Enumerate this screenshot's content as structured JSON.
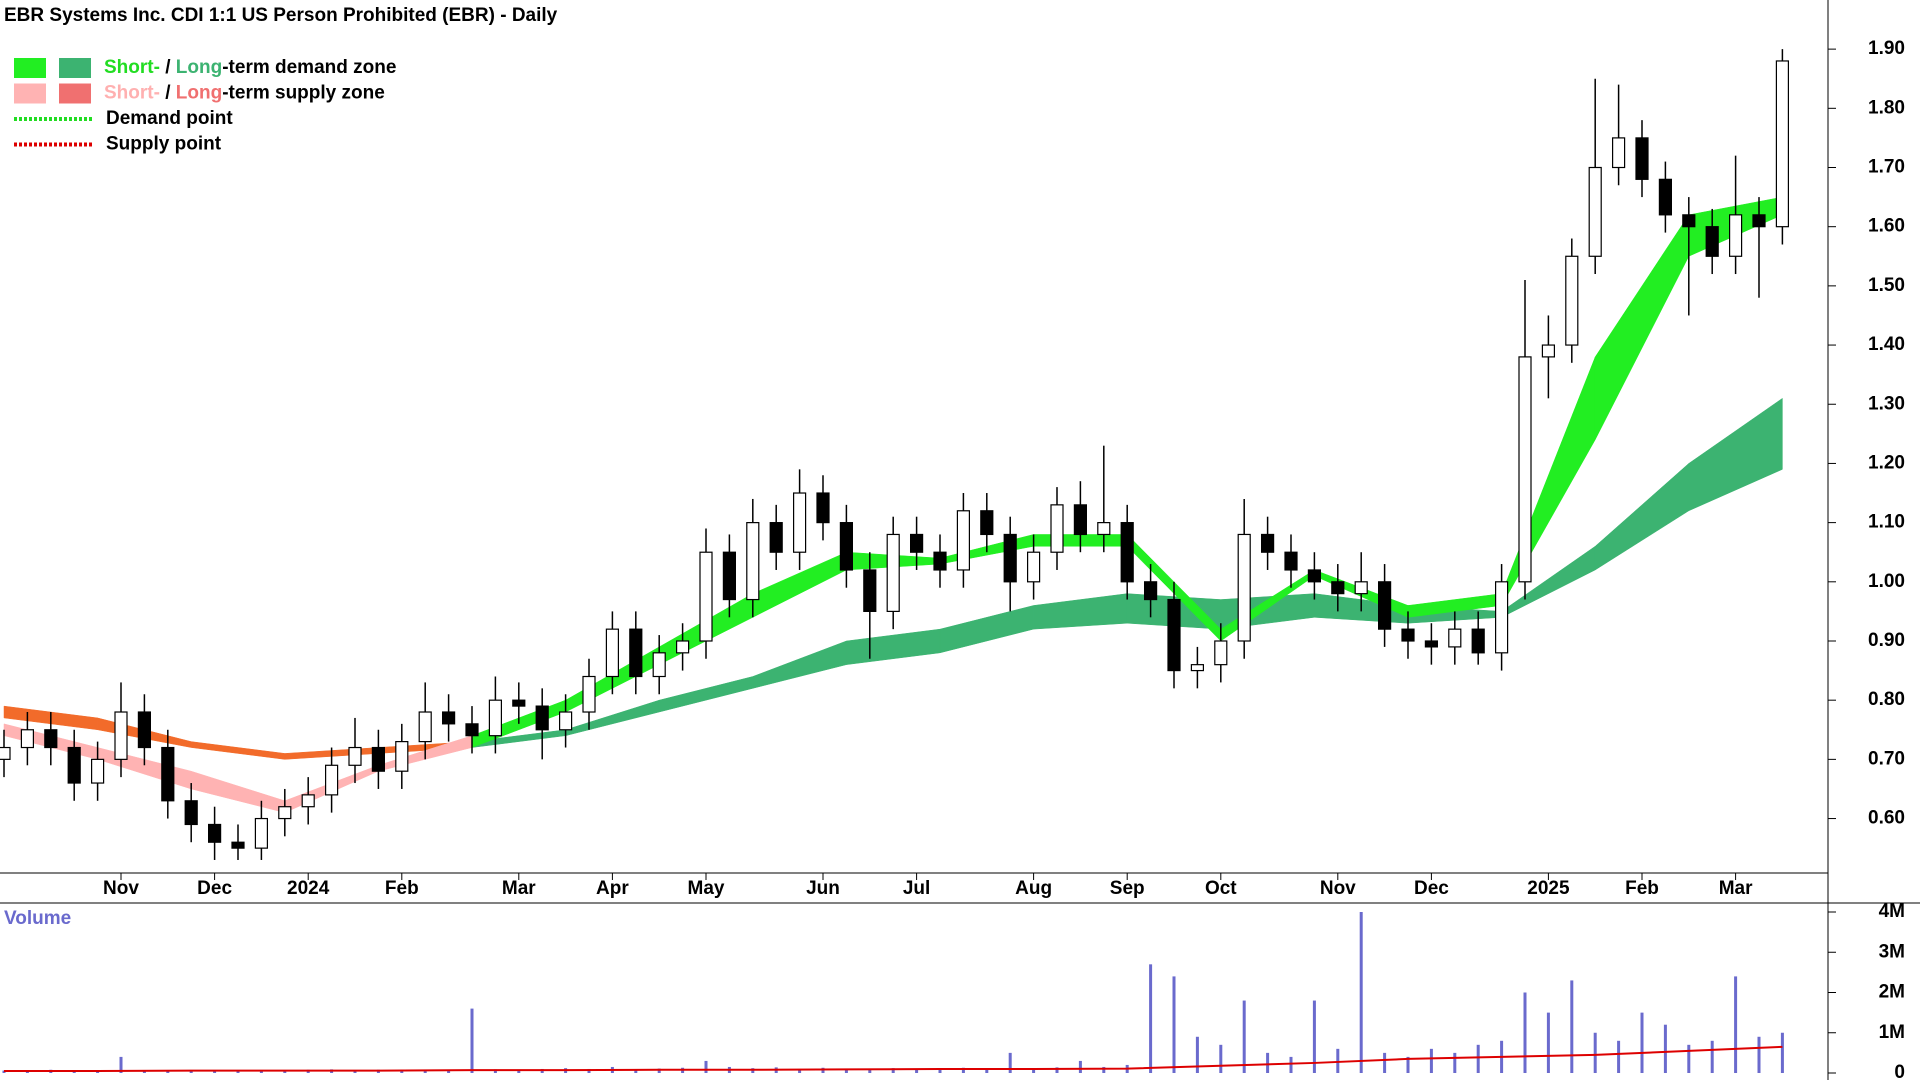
{
  "chart_data": [
    {
      "type": "candlestick",
      "title": "EBR Systems Inc. CDI 1:1 US Person Prohibited (EBR) - Daily",
      "categories": [
        null,
        null,
        null,
        null,
        null,
        "Nov",
        null,
        null,
        null,
        "Dec",
        null,
        null,
        null,
        "2024",
        null,
        null,
        null,
        "Feb",
        null,
        null,
        null,
        null,
        "Mar",
        null,
        null,
        null,
        "Apr",
        null,
        null,
        null,
        "May",
        null,
        null,
        null,
        null,
        "Jun",
        null,
        null,
        null,
        "Jul",
        null,
        null,
        null,
        null,
        "Aug",
        null,
        null,
        null,
        "Sep",
        null,
        null,
        null,
        "Oct",
        null,
        null,
        null,
        null,
        "Nov",
        null,
        null,
        null,
        "Dec",
        null,
        null,
        null,
        null,
        "2025",
        null,
        null,
        null,
        "Feb",
        null,
        null,
        null,
        "Mar",
        null,
        null
      ],
      "open": [
        0.7,
        0.72,
        0.75,
        0.72,
        0.66,
        0.7,
        0.78,
        0.72,
        0.63,
        0.59,
        0.56,
        0.55,
        0.6,
        0.62,
        0.64,
        0.69,
        0.72,
        0.68,
        0.73,
        0.78,
        0.76,
        0.74,
        0.8,
        0.79,
        0.75,
        0.78,
        0.84,
        0.92,
        0.84,
        0.88,
        0.9,
        1.05,
        0.97,
        1.1,
        1.05,
        1.15,
        1.1,
        1.02,
        0.95,
        1.08,
        1.05,
        1.02,
        1.12,
        1.08,
        1.0,
        1.05,
        1.13,
        1.08,
        1.1,
        1.0,
        0.97,
        0.85,
        0.86,
        0.9,
        1.08,
        1.05,
        1.02,
        1.0,
        0.98,
        1.0,
        0.92,
        0.9,
        0.89,
        0.92,
        0.88,
        1.0,
        1.38,
        1.4,
        1.55,
        1.7,
        1.75,
        1.68,
        1.62,
        1.6,
        1.55,
        1.62,
        1.6
      ],
      "high": [
        0.75,
        0.78,
        0.78,
        0.75,
        0.73,
        0.83,
        0.81,
        0.75,
        0.66,
        0.62,
        0.59,
        0.63,
        0.65,
        0.67,
        0.72,
        0.77,
        0.75,
        0.76,
        0.83,
        0.81,
        0.79,
        0.84,
        0.83,
        0.82,
        0.81,
        0.87,
        0.95,
        0.95,
        0.91,
        0.93,
        1.09,
        1.08,
        1.14,
        1.13,
        1.19,
        1.18,
        1.13,
        1.05,
        1.11,
        1.11,
        1.08,
        1.15,
        1.15,
        1.11,
        1.08,
        1.16,
        1.17,
        1.23,
        1.13,
        1.03,
        1.0,
        0.89,
        0.93,
        1.14,
        1.11,
        1.08,
        1.05,
        1.03,
        1.05,
        1.03,
        0.95,
        0.93,
        0.95,
        0.95,
        1.03,
        1.51,
        1.45,
        1.58,
        1.85,
        1.84,
        1.78,
        1.71,
        1.65,
        1.63,
        1.72,
        1.65,
        1.9
      ],
      "low": [
        0.67,
        0.69,
        0.69,
        0.63,
        0.63,
        0.67,
        0.69,
        0.6,
        0.56,
        0.53,
        0.53,
        0.53,
        0.57,
        0.59,
        0.61,
        0.66,
        0.65,
        0.65,
        0.7,
        0.73,
        0.71,
        0.71,
        0.76,
        0.7,
        0.72,
        0.75,
        0.81,
        0.81,
        0.81,
        0.85,
        0.87,
        0.94,
        0.94,
        1.02,
        1.02,
        1.07,
        0.99,
        0.87,
        0.92,
        1.02,
        0.99,
        0.99,
        1.05,
        0.95,
        0.97,
        1.02,
        1.05,
        1.05,
        0.97,
        0.94,
        0.82,
        0.82,
        0.83,
        0.87,
        1.02,
        0.99,
        0.97,
        0.95,
        0.95,
        0.89,
        0.87,
        0.86,
        0.86,
        0.86,
        0.85,
        0.97,
        1.31,
        1.37,
        1.52,
        1.67,
        1.65,
        1.59,
        1.45,
        1.52,
        1.52,
        1.48,
        1.57
      ],
      "close": [
        0.72,
        0.75,
        0.72,
        0.66,
        0.7,
        0.78,
        0.72,
        0.63,
        0.59,
        0.56,
        0.55,
        0.6,
        0.62,
        0.64,
        0.69,
        0.72,
        0.68,
        0.73,
        0.78,
        0.76,
        0.74,
        0.8,
        0.79,
        0.75,
        0.78,
        0.84,
        0.92,
        0.84,
        0.88,
        0.9,
        1.05,
        0.97,
        1.1,
        1.05,
        1.15,
        1.1,
        1.02,
        0.95,
        1.08,
        1.05,
        1.02,
        1.12,
        1.08,
        1.0,
        1.05,
        1.13,
        1.08,
        1.1,
        1.0,
        0.97,
        0.85,
        0.86,
        0.9,
        1.08,
        1.05,
        1.02,
        1.0,
        0.98,
        1.0,
        0.92,
        0.9,
        0.89,
        0.92,
        0.88,
        1.0,
        1.38,
        1.4,
        1.55,
        1.7,
        1.75,
        1.68,
        1.62,
        1.6,
        1.55,
        1.62,
        1.6,
        1.88
      ],
      "bands": {
        "x": [
          0,
          4,
          8,
          12,
          16,
          20,
          24,
          28,
          32,
          36,
          40,
          44,
          48,
          52,
          56,
          60,
          64,
          68,
          72,
          76
        ],
        "short_upper": [
          0.76,
          0.72,
          0.68,
          0.63,
          0.69,
          0.74,
          0.8,
          0.89,
          0.98,
          1.05,
          1.04,
          1.08,
          1.08,
          0.92,
          1.02,
          0.96,
          0.98,
          1.38,
          1.62,
          1.65
        ],
        "short_lower": [
          0.74,
          0.7,
          0.65,
          0.61,
          0.68,
          0.72,
          0.78,
          0.86,
          0.94,
          1.02,
          1.03,
          1.06,
          1.06,
          0.9,
          1.01,
          0.94,
          0.96,
          1.24,
          1.55,
          1.62
        ],
        "long_upper": [
          0.79,
          0.77,
          0.73,
          0.71,
          0.72,
          0.73,
          0.75,
          0.8,
          0.84,
          0.9,
          0.92,
          0.96,
          0.98,
          0.97,
          0.98,
          0.96,
          0.95,
          1.06,
          1.2,
          1.31
        ],
        "long_lower": [
          0.77,
          0.75,
          0.72,
          0.7,
          0.71,
          0.72,
          0.74,
          0.78,
          0.82,
          0.86,
          0.88,
          0.92,
          0.93,
          0.92,
          0.94,
          0.93,
          0.94,
          1.02,
          1.12,
          1.19
        ]
      },
      "band_colors": {
        "short_demand": "#22ee22",
        "long_demand": "#3cb371",
        "short_supply": "#ffb3b3",
        "long_supply": "#f26b2a"
      },
      "ylim": [
        0.508,
        1.983
      ],
      "yticks": [
        {
          "value": 0.6,
          "label": "0.60"
        },
        {
          "value": 0.7,
          "label": "0.70"
        },
        {
          "value": 0.8,
          "label": "0.80"
        },
        {
          "value": 0.9,
          "label": "0.90"
        },
        {
          "value": 1.0,
          "label": "1.00"
        },
        {
          "value": 1.1,
          "label": "1.10"
        },
        {
          "value": 1.2,
          "label": "1.20"
        },
        {
          "value": 1.3,
          "label": "1.30"
        },
        {
          "value": 1.4,
          "label": "1.40"
        },
        {
          "value": 1.5,
          "label": "1.50"
        },
        {
          "value": 1.6,
          "label": "1.60"
        },
        {
          "value": 1.7,
          "label": "1.70"
        },
        {
          "value": 1.8,
          "label": "1.80"
        },
        {
          "value": 1.9,
          "label": "1.90"
        }
      ],
      "legend": [
        {
          "swatches": [
            "#22ee22",
            "#3cb371"
          ],
          "parts": [
            "Short-",
            " / ",
            "Long",
            "-term demand zone"
          ],
          "part_colors": [
            "#22dd22",
            "#000000",
            "#3cb371",
            "#000000"
          ]
        },
        {
          "swatches": [
            "#ffb3b3",
            "#f07070"
          ],
          "parts": [
            "Short-",
            " / ",
            "Long",
            "-term supply zone"
          ],
          "part_colors": [
            "#ffb0b0",
            "#000000",
            "#f07070",
            "#000000"
          ]
        },
        {
          "line": "#22dd22",
          "parts": [
            "Demand point"
          ],
          "part_colors": [
            "#000000"
          ]
        },
        {
          "line": "#dd0000",
          "parts": [
            "Supply point"
          ],
          "part_colors": [
            "#000000"
          ]
        }
      ]
    },
    {
      "type": "bar",
      "label": "Volume",
      "color": "#6a6acd",
      "values": [
        60000,
        50000,
        80000,
        40000,
        50000,
        400000,
        60000,
        50000,
        40000,
        60000,
        50000,
        70000,
        60000,
        80000,
        90000,
        60000,
        80000,
        70000,
        60000,
        50000,
        1600000,
        90000,
        80000,
        100000,
        120000,
        100000,
        150000,
        90000,
        110000,
        130000,
        300000,
        150000,
        120000,
        140000,
        100000,
        130000,
        110000,
        90000,
        120000,
        100000,
        110000,
        130000,
        100000,
        500000,
        120000,
        140000,
        300000,
        150000,
        200000,
        2700000,
        2400000,
        900000,
        700000,
        1800000,
        500000,
        400000,
        1800000,
        600000,
        4000000,
        500000,
        400000,
        600000,
        500000,
        700000,
        800000,
        2000000,
        1500000,
        2300000,
        1000000,
        800000,
        1500000,
        1200000,
        700000,
        800000,
        2400000,
        900000,
        1000000
      ],
      "avg": {
        "x": [
          0,
          4,
          8,
          12,
          16,
          20,
          24,
          28,
          32,
          36,
          40,
          44,
          48,
          52,
          56,
          60,
          64,
          68,
          72,
          76
        ],
        "values": [
          50000,
          50000,
          60000,
          60000,
          60000,
          70000,
          70000,
          80000,
          80000,
          90000,
          100000,
          100000,
          110000,
          180000,
          250000,
          350000,
          400000,
          450000,
          550000,
          650000
        ],
        "color": "#dd0000"
      },
      "ylim": [
        0,
        4000000
      ],
      "yticks": [
        0,
        {
          "value": 1000000,
          "label": "1M"
        },
        {
          "value": 2000000,
          "label": "2M"
        },
        {
          "value": 3000000,
          "label": "3M"
        },
        {
          "value": 4000000,
          "label": "4M"
        }
      ]
    }
  ]
}
